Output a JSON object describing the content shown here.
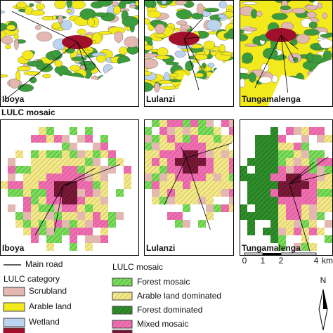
{
  "panels": {
    "top": [
      {
        "label": "Iboya"
      },
      {
        "label": "Lulanzi"
      },
      {
        "label": "Tungamalenga"
      }
    ],
    "section_title": "LULC mosaic",
    "bottom": [
      {
        "label": "Iboya"
      },
      {
        "label": "Lulanzi"
      },
      {
        "label": "Tungamalenga"
      }
    ]
  },
  "legend": {
    "road": "Main road",
    "lulc_category": {
      "title": "LULC category",
      "items": [
        {
          "label": "Scrubland",
          "color": "#e3b8b0"
        },
        {
          "label": "Arable land",
          "color": "#f2ea1c"
        },
        {
          "label": "Wetland",
          "color": "#bcd4f0"
        }
      ]
    },
    "lulc_mosaic": {
      "title": "LULC mosaic",
      "items": [
        {
          "label": "Forest mosaic",
          "color": "#7ddc5a"
        },
        {
          "label": "Arable land dominated",
          "color": "#f3e88a"
        },
        {
          "label": "Forest dominated",
          "color": "#2f8f2a"
        },
        {
          "label": "Mixed mosaic",
          "color": "#ef6fb0"
        }
      ]
    }
  },
  "scale_bar": {
    "ticks": [
      "0",
      "1",
      "2",
      "4"
    ],
    "unit": "km"
  },
  "north": "N"
}
